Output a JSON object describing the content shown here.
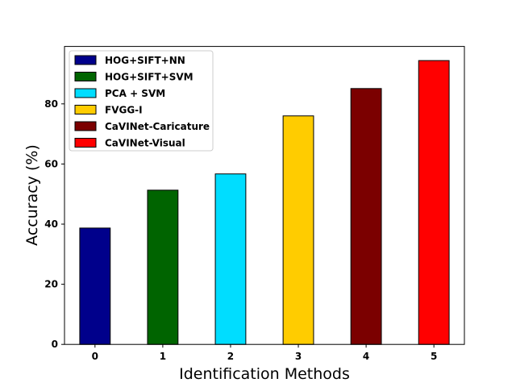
{
  "chart_data": {
    "type": "bar",
    "categories": [
      "0",
      "1",
      "2",
      "3",
      "4",
      "5"
    ],
    "values": [
      38.7,
      51.3,
      56.7,
      76.0,
      85.1,
      94.4
    ],
    "colors": [
      "#00008b",
      "#006400",
      "#00ddff",
      "#ffcc00",
      "#7b0000",
      "#ff0000"
    ],
    "xlabel": "Identification Methods",
    "ylabel": "Accuracy (%)",
    "ylim": [
      0,
      99.1
    ],
    "yticks": [
      "0",
      "20",
      "40",
      "60",
      "80"
    ],
    "ytick_values": [
      0,
      20,
      40,
      60,
      80
    ],
    "grid": false,
    "legend_position": "top-left",
    "legend": [
      {
        "label": "HOG+SIFT+NN",
        "color": "#00008b"
      },
      {
        "label": "HOG+SIFT+SVM",
        "color": "#006400"
      },
      {
        "label": "PCA + SVM",
        "color": "#00ddff"
      },
      {
        "label": "FVGG-I",
        "color": "#ffcc00"
      },
      {
        "label": "CaVINet-Caricature",
        "color": "#7b0000"
      },
      {
        "label": "CaVINet-Visual",
        "color": "#ff0000"
      }
    ]
  }
}
